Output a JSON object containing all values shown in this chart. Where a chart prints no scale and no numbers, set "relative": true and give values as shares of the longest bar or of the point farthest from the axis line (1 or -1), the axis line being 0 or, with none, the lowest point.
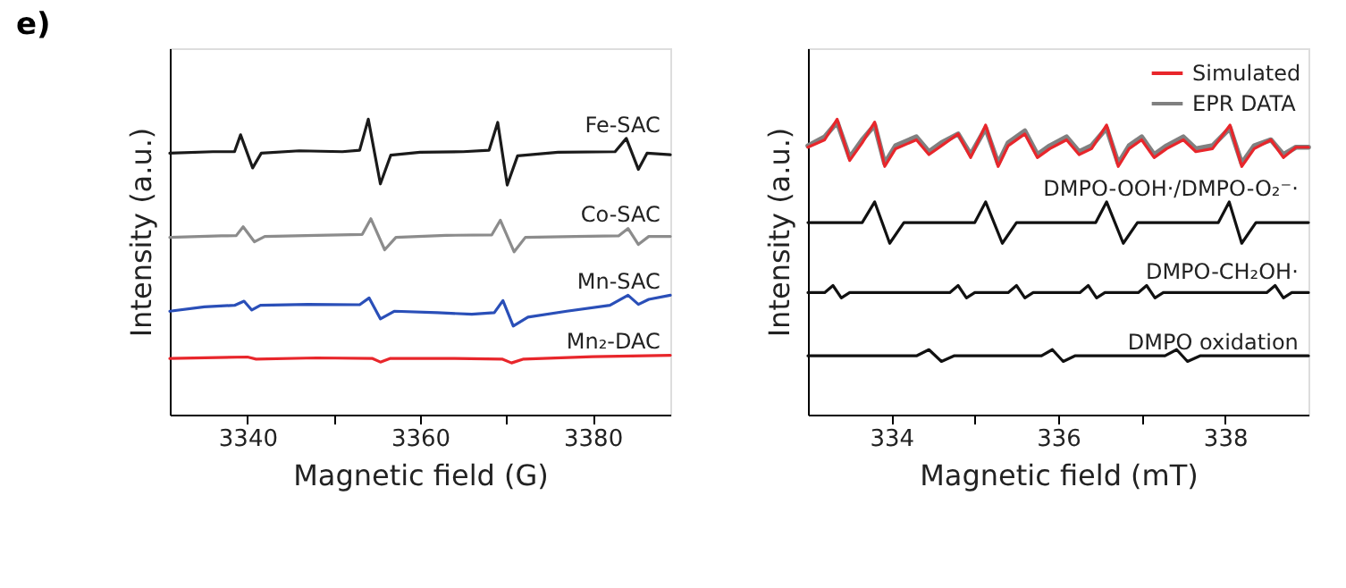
{
  "chart_data": [
    {
      "type": "line",
      "relative": true,
      "annotations": [
        "e)"
      ],
      "xlabel": "Magnetic field (G)",
      "ylabel": "Intensity (a.u.)",
      "xlim": [
        3331,
        3389
      ],
      "xticks": [
        3340,
        {
          "value": 3350,
          "label": null
        },
        3360,
        {
          "value": 3370,
          "label": null
        },
        3380
      ],
      "legend": false,
      "series": [
        {
          "name": "Fe-SAC",
          "color": "#1a1a1a",
          "x": [
            3331,
            3336,
            3338.5,
            3339.2,
            3340.6,
            3341.6,
            3346,
            3351,
            3353.0,
            3354.0,
            3355.4,
            3356.6,
            3360,
            3365,
            3368.0,
            3369.0,
            3370.1,
            3371.3,
            3376,
            3382.6,
            3383.9,
            3385.3,
            3386.3,
            3389
          ],
          "values": [
            0.885,
            0.89,
            0.89,
            0.947,
            0.835,
            0.885,
            0.893,
            0.89,
            0.895,
            1.0,
            0.781,
            0.878,
            0.888,
            0.89,
            0.895,
            0.989,
            0.777,
            0.876,
            0.888,
            0.89,
            0.935,
            0.83,
            0.885,
            0.88
          ]
        },
        {
          "name": "Co-SAC",
          "color": "#8c8c8c",
          "x": [
            3331,
            3337,
            3338.7,
            3339.5,
            3340.8,
            3342,
            3348,
            3353.3,
            3354.3,
            3355.9,
            3357.2,
            3363,
            3368.3,
            3369.3,
            3370.9,
            3372.2,
            3378,
            3383,
            3384.1,
            3385.3,
            3386.5,
            3389
          ],
          "values": [
            0.6,
            0.605,
            0.606,
            0.636,
            0.585,
            0.603,
            0.607,
            0.61,
            0.663,
            0.558,
            0.6,
            0.607,
            0.608,
            0.658,
            0.551,
            0.6,
            0.603,
            0.605,
            0.63,
            0.576,
            0.603,
            0.603
          ]
        },
        {
          "name": "Mn-SAC",
          "color": "#2a4fb8",
          "x": [
            3331,
            3335,
            3338.5,
            3339.6,
            3340.5,
            3341.5,
            3347,
            3353,
            3354.1,
            3355.4,
            3357,
            3362,
            3366,
            3368.6,
            3369.6,
            3370.8,
            3372.5,
            3377,
            3382,
            3384.1,
            3385.3,
            3386.5,
            3389
          ],
          "values": [
            0.35,
            0.365,
            0.37,
            0.384,
            0.354,
            0.37,
            0.373,
            0.372,
            0.395,
            0.324,
            0.35,
            0.345,
            0.34,
            0.345,
            0.386,
            0.3,
            0.33,
            0.35,
            0.37,
            0.404,
            0.373,
            0.39,
            0.404
          ]
        },
        {
          "name": "Mn₂-DAC",
          "color": "#e8262b",
          "x": [
            3331,
            3340,
            3341,
            3348,
            3354.5,
            3355.4,
            3356.5,
            3364,
            3369.5,
            3370.6,
            3372,
            3380,
            3389
          ],
          "values": [
            0.19,
            0.195,
            0.188,
            0.192,
            0.19,
            0.178,
            0.19,
            0.19,
            0.188,
            0.175,
            0.188,
            0.196,
            0.201
          ]
        }
      ]
    },
    {
      "type": "line",
      "relative": true,
      "xlabel": "Magnetic field (mT)",
      "ylabel": "Intensity (a.u.)",
      "xlim": [
        333,
        339
      ],
      "xticks": [
        334,
        {
          "value": 335,
          "label": null
        },
        336,
        {
          "value": 337,
          "label": null
        },
        338
      ],
      "legend": "top right",
      "series": [
        {
          "name": "Simulated",
          "color": "#e8262b",
          "x": [
            333.0,
            333.2,
            333.35,
            333.5,
            333.65,
            333.8,
            333.92,
            334.05,
            334.3,
            334.45,
            334.6,
            334.8,
            334.95,
            335.13,
            335.28,
            335.4,
            335.6,
            335.75,
            335.9,
            336.1,
            336.25,
            336.4,
            336.58,
            336.72,
            336.85,
            337.0,
            337.15,
            337.3,
            337.5,
            337.65,
            337.85,
            338.06,
            338.2,
            338.35,
            338.55,
            338.7,
            338.85,
            339.0
          ],
          "values": [
            0.905,
            0.93,
            1.0,
            0.86,
            0.92,
            0.99,
            0.84,
            0.9,
            0.93,
            0.88,
            0.91,
            0.95,
            0.87,
            0.98,
            0.84,
            0.91,
            0.95,
            0.87,
            0.9,
            0.93,
            0.88,
            0.9,
            0.98,
            0.84,
            0.9,
            0.93,
            0.87,
            0.9,
            0.93,
            0.89,
            0.9,
            0.98,
            0.84,
            0.9,
            0.93,
            0.87,
            0.905,
            0.905
          ]
        },
        {
          "name": "EPR DATA",
          "color": "#808080",
          "x": [
            333.0,
            333.2,
            333.35,
            333.5,
            333.65,
            333.8,
            333.92,
            334.05,
            334.3,
            334.45,
            334.6,
            334.8,
            334.95,
            335.13,
            335.28,
            335.4,
            335.6,
            335.75,
            335.9,
            336.1,
            336.25,
            336.4,
            336.58,
            336.72,
            336.85,
            337.0,
            337.15,
            337.3,
            337.5,
            337.65,
            337.85,
            338.06,
            338.2,
            338.35,
            338.55,
            338.7,
            338.85,
            339.0
          ],
          "values": [
            0.91,
            0.94,
            0.99,
            0.87,
            0.93,
            0.98,
            0.85,
            0.91,
            0.94,
            0.89,
            0.92,
            0.95,
            0.88,
            0.97,
            0.85,
            0.92,
            0.96,
            0.88,
            0.91,
            0.94,
            0.89,
            0.91,
            0.97,
            0.85,
            0.91,
            0.94,
            0.88,
            0.91,
            0.94,
            0.9,
            0.91,
            0.97,
            0.85,
            0.91,
            0.93,
            0.88,
            0.905,
            0.905
          ]
        },
        {
          "name": "DMPO-OOH·/DMPO-O₂⁻·",
          "color": "#111111",
          "x": [
            333.0,
            333.65,
            333.8,
            333.98,
            334.15,
            335.0,
            335.13,
            335.33,
            335.5,
            336.45,
            336.58,
            336.78,
            336.95,
            337.92,
            338.05,
            338.2,
            338.37,
            339.0
          ],
          "values": [
            0.65,
            0.65,
            0.72,
            0.58,
            0.65,
            0.65,
            0.72,
            0.58,
            0.65,
            0.65,
            0.72,
            0.58,
            0.65,
            0.65,
            0.72,
            0.58,
            0.65,
            0.65
          ]
        },
        {
          "name": "DMPO-CH₂OH·",
          "color": "#111111",
          "x": [
            333.0,
            333.2,
            333.3,
            333.4,
            333.5,
            334.7,
            334.8,
            334.9,
            335.0,
            335.4,
            335.5,
            335.6,
            335.7,
            336.26,
            336.36,
            336.46,
            336.56,
            336.96,
            337.06,
            337.16,
            337.26,
            338.5,
            338.6,
            338.7,
            338.8,
            339.0
          ],
          "values": [
            0.413,
            0.413,
            0.437,
            0.395,
            0.413,
            0.413,
            0.437,
            0.395,
            0.413,
            0.413,
            0.437,
            0.395,
            0.413,
            0.413,
            0.437,
            0.395,
            0.413,
            0.413,
            0.437,
            0.395,
            0.413,
            0.413,
            0.437,
            0.395,
            0.413,
            0.413
          ]
        },
        {
          "name": "DMPO oxidation",
          "color": "#111111",
          "x": [
            333.0,
            334.3,
            334.45,
            334.6,
            334.75,
            335.8,
            335.93,
            336.06,
            336.2,
            337.28,
            337.42,
            337.55,
            337.7,
            339.0
          ],
          "values": [
            0.199,
            0.199,
            0.22,
            0.18,
            0.199,
            0.199,
            0.22,
            0.18,
            0.199,
            0.199,
            0.22,
            0.18,
            0.199,
            0.199
          ]
        }
      ]
    }
  ]
}
